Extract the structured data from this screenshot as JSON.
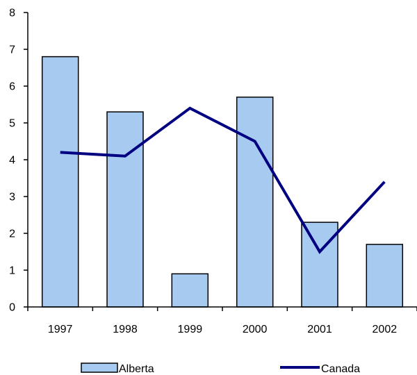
{
  "chart_data": {
    "type": "bar",
    "title": "",
    "xlabel": "",
    "ylabel": "",
    "categories": [
      "1997",
      "1998",
      "1999",
      "2000",
      "2001",
      "2002"
    ],
    "ylim": [
      0,
      8
    ],
    "yticks": [
      0,
      1,
      2,
      3,
      4,
      5,
      6,
      7,
      8
    ],
    "grid": false,
    "legend_position": "bottom",
    "series": [
      {
        "name": "Alberta",
        "type": "bar",
        "color": "#A6CAF0",
        "values": [
          6.8,
          5.3,
          0.9,
          5.7,
          2.3,
          1.7
        ]
      },
      {
        "name": "Canada",
        "type": "line",
        "color": "#000080",
        "values": [
          4.2,
          4.1,
          5.4,
          4.5,
          1.5,
          3.4
        ]
      }
    ]
  }
}
